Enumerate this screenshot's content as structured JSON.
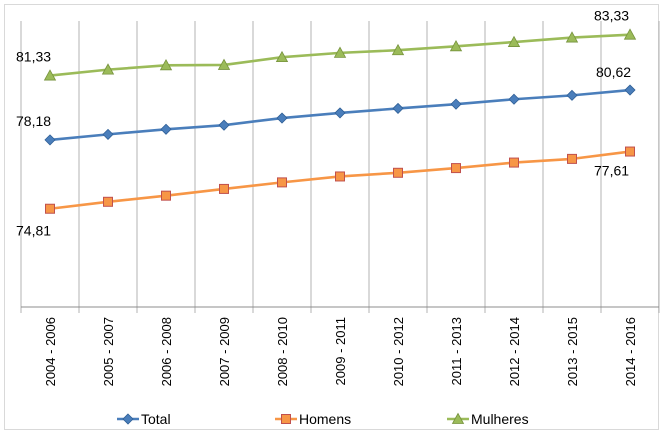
{
  "chart_data": {
    "type": "line",
    "title": "",
    "xlabel": "",
    "ylabel": "",
    "ylim": [
      70,
      84
    ],
    "grid": "vertical",
    "legend_position": "bottom",
    "categories": [
      "2004 - 2006",
      "2005 - 2007",
      "2006 - 2008",
      "2007 - 2009",
      "2008 - 2010",
      "2009 - 2011",
      "2010 - 2012",
      "2011 - 2013",
      "2012 - 2014",
      "2013 - 2015",
      "2014 - 2016"
    ],
    "series": [
      {
        "name": "Total",
        "color": "#4a7ebb",
        "marker": "diamond",
        "values": [
          78.18,
          78.45,
          78.7,
          78.9,
          79.25,
          79.5,
          79.72,
          79.93,
          80.17,
          80.36,
          80.62
        ],
        "value_labels": {
          "0": "78,18",
          "10": "80,62"
        }
      },
      {
        "name": "Homens",
        "color": "#f79646",
        "marker": "square",
        "values": [
          74.81,
          75.15,
          75.45,
          75.78,
          76.1,
          76.39,
          76.57,
          76.8,
          77.07,
          77.25,
          77.61
        ],
        "value_labels": {
          "0": "74,81",
          "10": "77,61"
        }
      },
      {
        "name": "Mulheres",
        "color": "#9bbb59",
        "marker": "triangle",
        "values": [
          81.33,
          81.62,
          81.83,
          81.85,
          82.23,
          82.44,
          82.57,
          82.76,
          82.97,
          83.19,
          83.33
        ],
        "value_labels": {
          "0": "81,33",
          "10": "83,33"
        }
      }
    ]
  }
}
